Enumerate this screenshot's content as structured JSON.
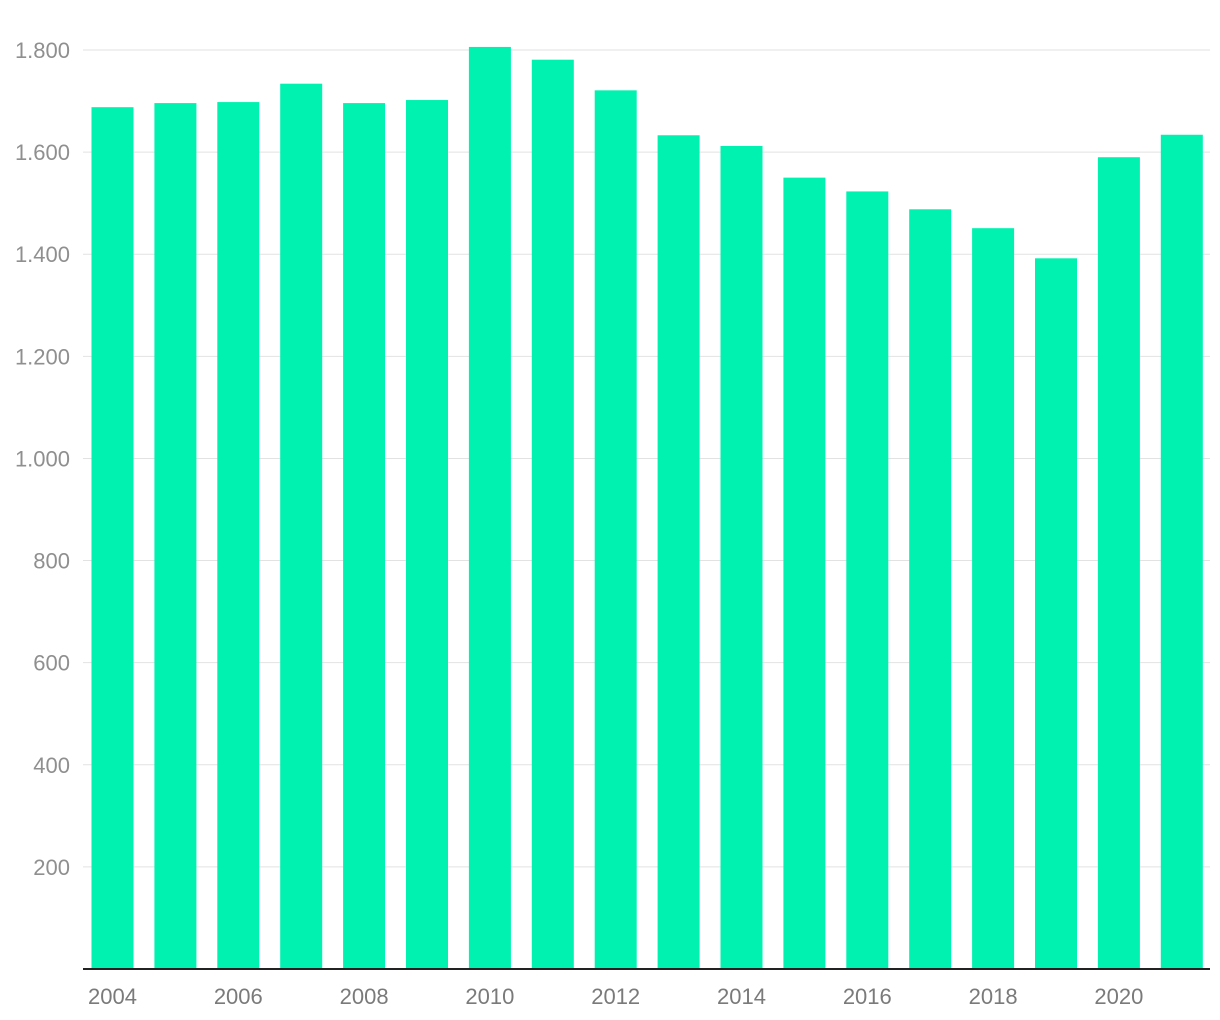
{
  "chart_data": {
    "type": "bar",
    "title": "",
    "xlabel": "",
    "ylabel": "",
    "categories": [
      "2004",
      "2005",
      "2006",
      "2007",
      "2008",
      "2009",
      "2010",
      "2011",
      "2012",
      "2013",
      "2014",
      "2015",
      "2016",
      "2017",
      "2018",
      "2019",
      "2020",
      "2021"
    ],
    "values": [
      1688,
      1696,
      1698,
      1734,
      1696,
      1702,
      1806,
      1781,
      1721,
      1633,
      1612,
      1550,
      1523,
      1488,
      1451,
      1392,
      1590,
      1634
    ],
    "x_tick_labels": [
      "2004",
      "2006",
      "2008",
      "2010",
      "2012",
      "2014",
      "2016",
      "2018",
      "2020"
    ],
    "y_tick_values": [
      200,
      400,
      600,
      800,
      1000,
      1200,
      1400,
      1600,
      1800
    ],
    "y_tick_labels": [
      "200",
      "400",
      "600",
      "800",
      "1.000",
      "1.200",
      "1.400",
      "1.600",
      "1.800"
    ],
    "ylim": [
      0,
      1800
    ],
    "grid": true,
    "legend": "none",
    "bar_color": "#00f2b0"
  }
}
